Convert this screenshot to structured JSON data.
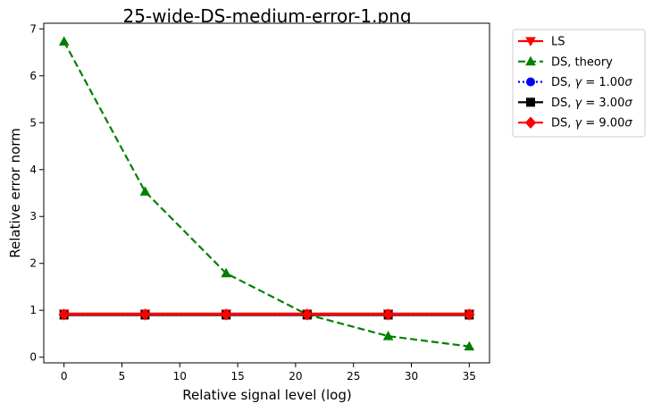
{
  "chart_data": {
    "type": "line",
    "title": "25-wide-DS-medium-error-1.png",
    "xlabel": "Relative signal level (log)",
    "ylabel": "Relative error norm",
    "xlim": [
      -1.75,
      36.75
    ],
    "ylim": [
      -0.12,
      7.12
    ],
    "xticks": [
      0,
      5,
      10,
      15,
      20,
      25,
      30,
      35
    ],
    "yticks": [
      0,
      1,
      2,
      3,
      4,
      5,
      6,
      7
    ],
    "x": [
      0,
      7,
      14,
      21,
      28,
      35
    ],
    "legend_position": "outside right",
    "series": [
      {
        "name": "LS",
        "label": [
          "LS"
        ],
        "color": "#ff0000",
        "dash": "solid",
        "marker": "triangle-down",
        "values": [
          0.93,
          0.93,
          0.93,
          0.93,
          0.93,
          0.93
        ]
      },
      {
        "name": "DS, theory",
        "label": [
          "DS, theory"
        ],
        "color": "#008000",
        "dash": "dashed",
        "marker": "triangle-up",
        "values": [
          6.73,
          3.53,
          1.79,
          0.91,
          0.45,
          0.23
        ]
      },
      {
        "name": "DS, γ = 1.00σ",
        "label": [
          "DS, ",
          "γ",
          " = 1.00",
          "σ"
        ],
        "color": "#0000ff",
        "dash": "dotted",
        "marker": "circle",
        "values": [
          0.9,
          0.9,
          0.9,
          0.9,
          0.9,
          0.9
        ]
      },
      {
        "name": "DS, γ = 3.00σ",
        "label": [
          "DS, ",
          "γ",
          " = 3.00",
          "σ"
        ],
        "color": "#000000",
        "dash": "solid",
        "marker": "square",
        "values": [
          0.9,
          0.9,
          0.9,
          0.9,
          0.9,
          0.9
        ]
      },
      {
        "name": "DS, γ = 9.00σ",
        "label": [
          "DS, ",
          "γ",
          " = 9.00",
          "σ"
        ],
        "color": "#ff0000",
        "dash": "solid",
        "marker": "diamond",
        "values": [
          0.91,
          0.91,
          0.91,
          0.91,
          0.91,
          0.91
        ]
      }
    ]
  }
}
